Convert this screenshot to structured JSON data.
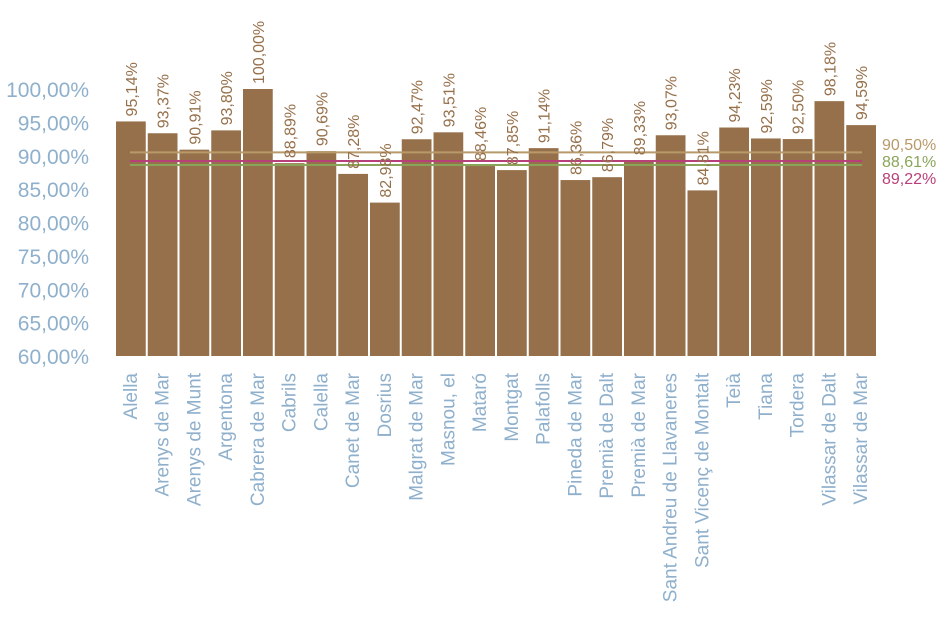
{
  "chart_data": {
    "type": "bar",
    "categories": [
      "Alella",
      "Arenys de Mar",
      "Arenys de Munt",
      "Argentona",
      "Cabrera de Mar",
      "Cabrils",
      "Calella",
      "Canet de Mar",
      "Dosrius",
      "Malgrat de Mar",
      "Masnou, el",
      "Mataró",
      "Montgat",
      "Palafolls",
      "Pineda de Mar",
      "Premià de Dalt",
      "Premià de Mar",
      "Sant Andreu de Llavaneres",
      "Sant Vicenç de Montalt",
      "Teià",
      "Tiana",
      "Tordera",
      "Vilassar de Dalt",
      "Vilassar de Mar"
    ],
    "values": [
      95.14,
      93.37,
      90.91,
      93.8,
      100.0,
      88.89,
      90.69,
      87.28,
      82.98,
      92.47,
      93.51,
      88.46,
      87.85,
      91.14,
      86.36,
      86.79,
      89.33,
      93.07,
      84.81,
      94.23,
      92.59,
      92.5,
      98.18,
      94.59
    ],
    "value_labels": [
      "95,14%",
      "93,37%",
      "90,91%",
      "93,80%",
      "100,00%",
      "88,89%",
      "90,69%",
      "87,28%",
      "82,98%",
      "92,47%",
      "93,51%",
      "88,46%",
      "87,85%",
      "91,14%",
      "86,36%",
      "86,79%",
      "89,33%",
      "93,07%",
      "84,81%",
      "94,23%",
      "92,59%",
      "92,50%",
      "98,18%",
      "94,59%"
    ],
    "ylim": [
      60,
      100
    ],
    "y_ticks": [
      60,
      65,
      70,
      75,
      80,
      85,
      90,
      95,
      100
    ],
    "y_tick_labels": [
      "60,00%",
      "65,00%",
      "70,00%",
      "75,00%",
      "80,00%",
      "85,00%",
      "90,00%",
      "95,00%",
      "100,00%"
    ],
    "reference_lines": [
      {
        "value": 90.5,
        "label": "90,50%",
        "color": "#b89a6a"
      },
      {
        "value": 88.61,
        "label": "88,61%",
        "color": "#8aa55a"
      },
      {
        "value": 89.22,
        "label": "89,22%",
        "color": "#b8407a"
      }
    ],
    "bar_color": "#96704a",
    "value_label_color": "#96704a",
    "axis_label_color": "#8fb0cc",
    "grid": false,
    "legend": false
  }
}
